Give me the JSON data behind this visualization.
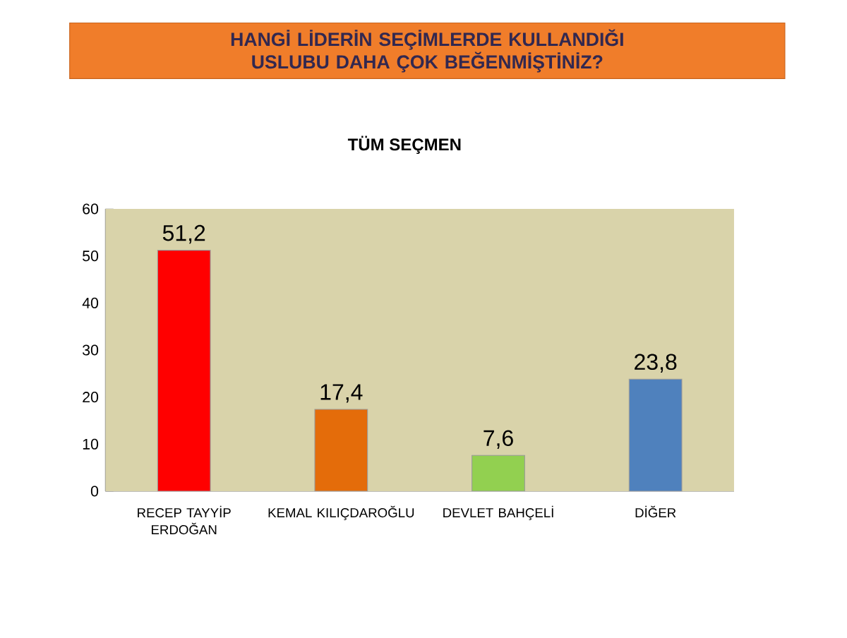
{
  "chart_data": {
    "type": "bar",
    "title": "HANGİ LİDERİN SEÇİMLERDE KULLANDIĞI USLUBU DAHA ÇOK BEĞENMİŞTİNİZ?",
    "subtitle": "TÜM SEÇMEN",
    "categories": [
      "RECEP TAYYİP ERDOĞAN",
      "KEMAL KILIÇDAROĞLU",
      "DEVLET BAHÇELİ",
      "DİĞER"
    ],
    "values": [
      51.2,
      17.4,
      7.6,
      23.8
    ],
    "value_labels": [
      "51,2",
      "17,4",
      "7,6",
      "23,8"
    ],
    "colors": [
      "#ff0000",
      "#e46c0a",
      "#92d050",
      "#4f81bd"
    ],
    "ylim": [
      0,
      60
    ],
    "yticks": [
      0,
      10,
      20,
      30,
      40,
      50,
      60
    ],
    "grid": false
  }
}
